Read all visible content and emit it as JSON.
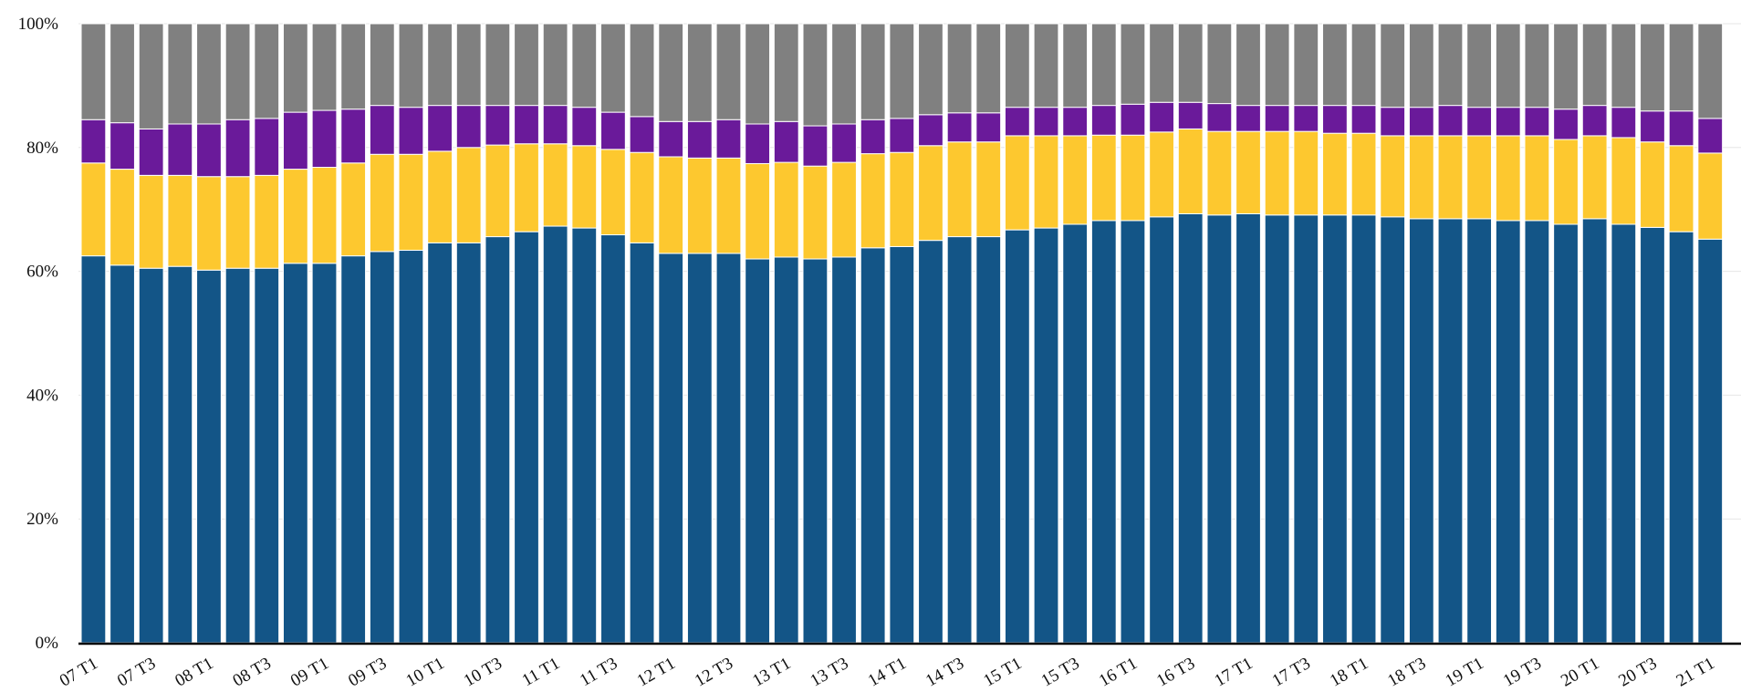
{
  "chart_data": {
    "type": "stacked_bar",
    "categories": [
      "07 T1",
      null,
      "07 T3",
      null,
      "08 T1",
      null,
      "08 T3",
      null,
      "09 T1",
      null,
      "09 T3",
      null,
      "10 T1",
      null,
      "10 T3",
      null,
      "11 T1",
      null,
      "11 T3",
      null,
      "12 T1",
      null,
      "12 T3",
      null,
      "13 T1",
      null,
      "13 T3",
      null,
      "14 T1",
      null,
      "14 T3",
      null,
      "15 T1",
      null,
      "15 T3",
      null,
      "16 T1",
      null,
      "16 T3",
      null,
      "17 T1",
      null,
      "17 T3",
      null,
      "18 T1",
      null,
      "18 T3",
      null,
      "19 T1",
      null,
      "19 T3",
      null,
      "20 T1",
      null,
      "20 T3",
      null,
      "21 T1"
    ],
    "series": [
      {
        "color": "#135587",
        "values": [
          62.5,
          61.0,
          60.5,
          60.8,
          60.2,
          60.5,
          60.5,
          61.3,
          61.3,
          62.5,
          63.2,
          63.4,
          64.6,
          64.6,
          65.6,
          66.4,
          67.3,
          67.0,
          65.9,
          64.6,
          62.9,
          62.9,
          62.9,
          62.0,
          62.3,
          62.0,
          62.3,
          63.8,
          64.0,
          65.0,
          65.6,
          65.6,
          66.7,
          67.0,
          67.6,
          68.2,
          68.2,
          68.8,
          69.3,
          69.1,
          69.3,
          69.1,
          69.1,
          69.1,
          69.1,
          68.8,
          68.5,
          68.5,
          68.5,
          68.2,
          68.2,
          67.6,
          68.5,
          67.6,
          67.1,
          66.4,
          65.2
        ]
      },
      {
        "color": "#fdc82f",
        "values": [
          15.0,
          15.5,
          15.0,
          14.7,
          15.1,
          14.8,
          15.0,
          15.2,
          15.5,
          15.0,
          15.7,
          15.5,
          14.8,
          15.4,
          14.8,
          14.2,
          13.3,
          13.3,
          13.8,
          14.6,
          15.6,
          15.4,
          15.4,
          15.4,
          15.3,
          15.0,
          15.3,
          15.2,
          15.2,
          15.3,
          15.3,
          15.3,
          15.2,
          14.9,
          14.3,
          13.8,
          13.8,
          13.7,
          13.7,
          13.5,
          13.3,
          13.5,
          13.5,
          13.2,
          13.2,
          13.1,
          13.4,
          13.4,
          13.4,
          13.7,
          13.7,
          13.7,
          13.4,
          14.0,
          13.8,
          13.9,
          13.9
        ]
      },
      {
        "color": "#6a1a9a",
        "values": [
          7.0,
          7.5,
          7.5,
          8.3,
          8.5,
          9.2,
          9.2,
          9.2,
          9.2,
          8.7,
          7.9,
          7.6,
          7.4,
          6.8,
          6.4,
          6.2,
          6.2,
          6.2,
          6.0,
          5.8,
          5.7,
          5.9,
          6.2,
          6.4,
          6.6,
          6.5,
          6.2,
          5.5,
          5.5,
          5.0,
          4.7,
          4.7,
          4.6,
          4.6,
          4.6,
          4.8,
          5.0,
          4.8,
          4.3,
          4.5,
          4.2,
          4.2,
          4.2,
          4.5,
          4.5,
          4.6,
          4.6,
          4.9,
          4.6,
          4.6,
          4.6,
          4.9,
          4.9,
          4.9,
          5.0,
          5.6,
          5.6
        ]
      },
      {
        "color": "#808080",
        "values": [
          15.5,
          16.0,
          17.0,
          16.2,
          16.2,
          15.5,
          15.3,
          14.3,
          14.0,
          13.8,
          13.2,
          13.5,
          13.2,
          13.2,
          13.2,
          13.2,
          13.2,
          13.5,
          14.3,
          15.0,
          15.8,
          15.8,
          15.5,
          16.2,
          15.8,
          16.5,
          16.2,
          15.5,
          15.3,
          14.7,
          14.4,
          14.4,
          13.5,
          13.5,
          13.5,
          13.2,
          13.0,
          12.7,
          12.7,
          12.9,
          13.2,
          13.2,
          13.2,
          13.2,
          13.2,
          13.5,
          13.5,
          13.2,
          13.5,
          13.5,
          13.5,
          13.8,
          13.2,
          13.5,
          14.1,
          14.1,
          15.3
        ]
      }
    ],
    "ylim": [
      0,
      100
    ],
    "yticks": [
      {
        "value": 0,
        "label": "0%"
      },
      {
        "value": 20,
        "label": "20%"
      },
      {
        "value": 40,
        "label": "40%"
      },
      {
        "value": 60,
        "label": "60%"
      },
      {
        "value": 80,
        "label": "80%"
      },
      {
        "value": 100,
        "label": "100%"
      }
    ],
    "grid": true
  }
}
